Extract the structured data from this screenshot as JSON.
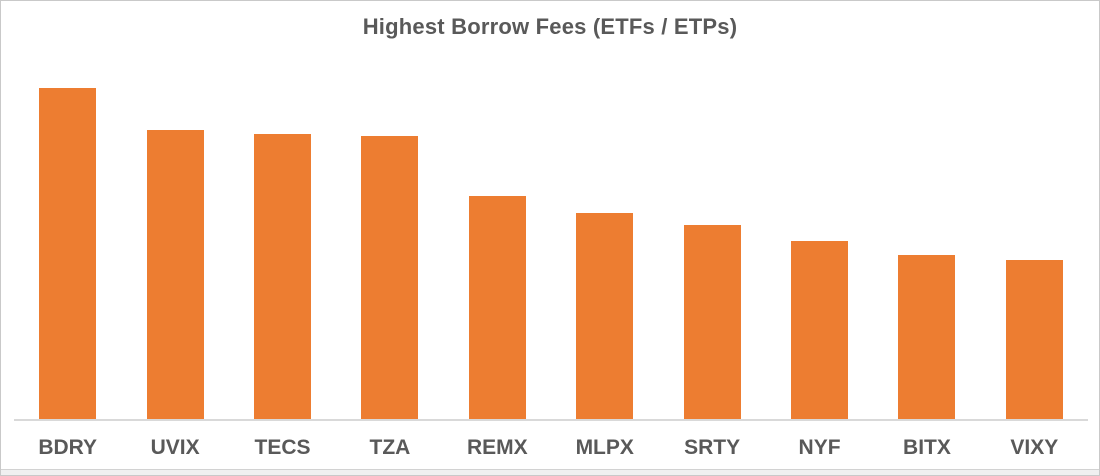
{
  "chart_data": {
    "type": "bar",
    "title": "Highest Borrow Fees (ETFs / ETPs)",
    "categories": [
      "BDRY",
      "UVIX",
      "TECS",
      "TZA",
      "REMX",
      "MLPX",
      "SRTY",
      "NYF",
      "BITX",
      "VIXY"
    ],
    "values": [
      100,
      87.4,
      86.2,
      85.6,
      67.5,
      62.1,
      58.6,
      53.7,
      49.5,
      48.0
    ],
    "value_units": "relative bar height (tallest bar = 100); no value axis shown",
    "value_axis_visible": false,
    "xlabel": "",
    "ylabel": "",
    "grid": false,
    "legend": false,
    "ylim": [
      0,
      110
    ],
    "colors": {
      "bar": "#ED7D31",
      "title_text": "#595959",
      "category_text": "#595959",
      "axis_line": "#D9D9D9",
      "background": "#FFFFFF",
      "card_border": "#C9C9C9"
    }
  }
}
